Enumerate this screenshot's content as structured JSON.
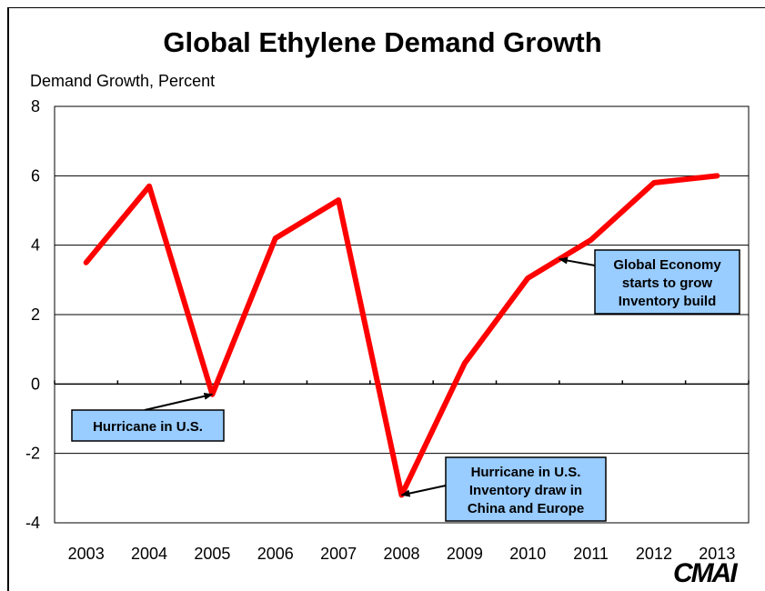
{
  "chart_data": {
    "type": "line",
    "title": "Global Ethylene Demand Growth",
    "ylabel": "Demand Growth, Percent",
    "xlabel": "",
    "ylim": [
      -4,
      8
    ],
    "yticks": [
      -4,
      -2,
      0,
      2,
      4,
      6,
      8
    ],
    "categories": [
      "2003",
      "2004",
      "2005",
      "2006",
      "2007",
      "2008",
      "2009",
      "2010",
      "2011",
      "2012",
      "2013"
    ],
    "series": [
      {
        "values": [
          3.5,
          5.7,
          -0.3,
          4.2,
          5.3,
          -3.2,
          0.6,
          3.05,
          4.15,
          5.8,
          6.0
        ],
        "color": "#ff0000"
      }
    ],
    "grid": "horizontal",
    "annotations": [
      {
        "text": "Hurricane in U.S.",
        "target_x": "2005",
        "target_y": -0.3
      },
      {
        "text": "Hurricane in U.S.\nInventory draw in\nChina and Europe",
        "target_x": "2008",
        "target_y": -3.2
      },
      {
        "text": "Global Economy\nstarts to grow\nInventory build",
        "target_x": "2010.5",
        "target_y": 3.6
      }
    ]
  },
  "logo_text": "CMAI",
  "colors": {
    "line": "#ff0000",
    "annotation_fill": "#99ccff"
  }
}
